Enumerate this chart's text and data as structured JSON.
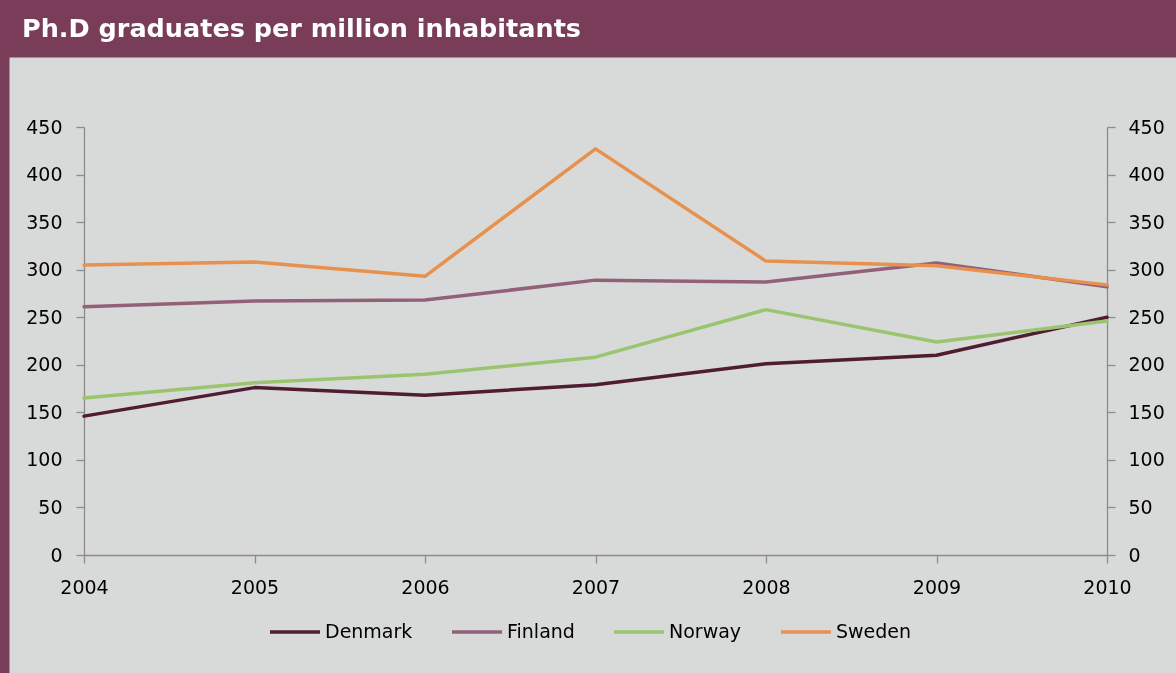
{
  "chart_data": {
    "type": "line",
    "title": "Ph.D graduates per million inhabitants",
    "x": [
      2004,
      2005,
      2006,
      2007,
      2008,
      2009,
      2010
    ],
    "xlim": [
      2004,
      2010
    ],
    "xticks": [
      2004,
      2005,
      2006,
      2007,
      2008,
      2009,
      2010
    ],
    "ylim": [
      0,
      450
    ],
    "yticks": [
      0,
      50,
      100,
      150,
      200,
      250,
      300,
      350,
      400,
      450
    ],
    "y2lim": [
      0,
      450
    ],
    "y2ticks": [
      0,
      50,
      100,
      150,
      200,
      250,
      300,
      350,
      400,
      450
    ],
    "grid": false,
    "legend": "bottom",
    "marker": "none",
    "line_style": "solid",
    "series": [
      {
        "name": "Denmark",
        "color": "#4f1c33",
        "values": [
          146,
          176,
          168,
          179,
          201,
          210,
          250
        ]
      },
      {
        "name": "Finland",
        "color": "#93607a",
        "values": [
          261,
          267,
          268,
          289,
          287,
          307,
          282
        ]
      },
      {
        "name": "Norway",
        "color": "#9bc46f",
        "values": [
          165,
          181,
          190,
          208,
          258,
          224,
          246
        ]
      },
      {
        "name": "Sweden",
        "color": "#e8914e",
        "values": [
          305,
          308,
          293,
          427,
          309,
          304,
          284
        ]
      }
    ]
  }
}
